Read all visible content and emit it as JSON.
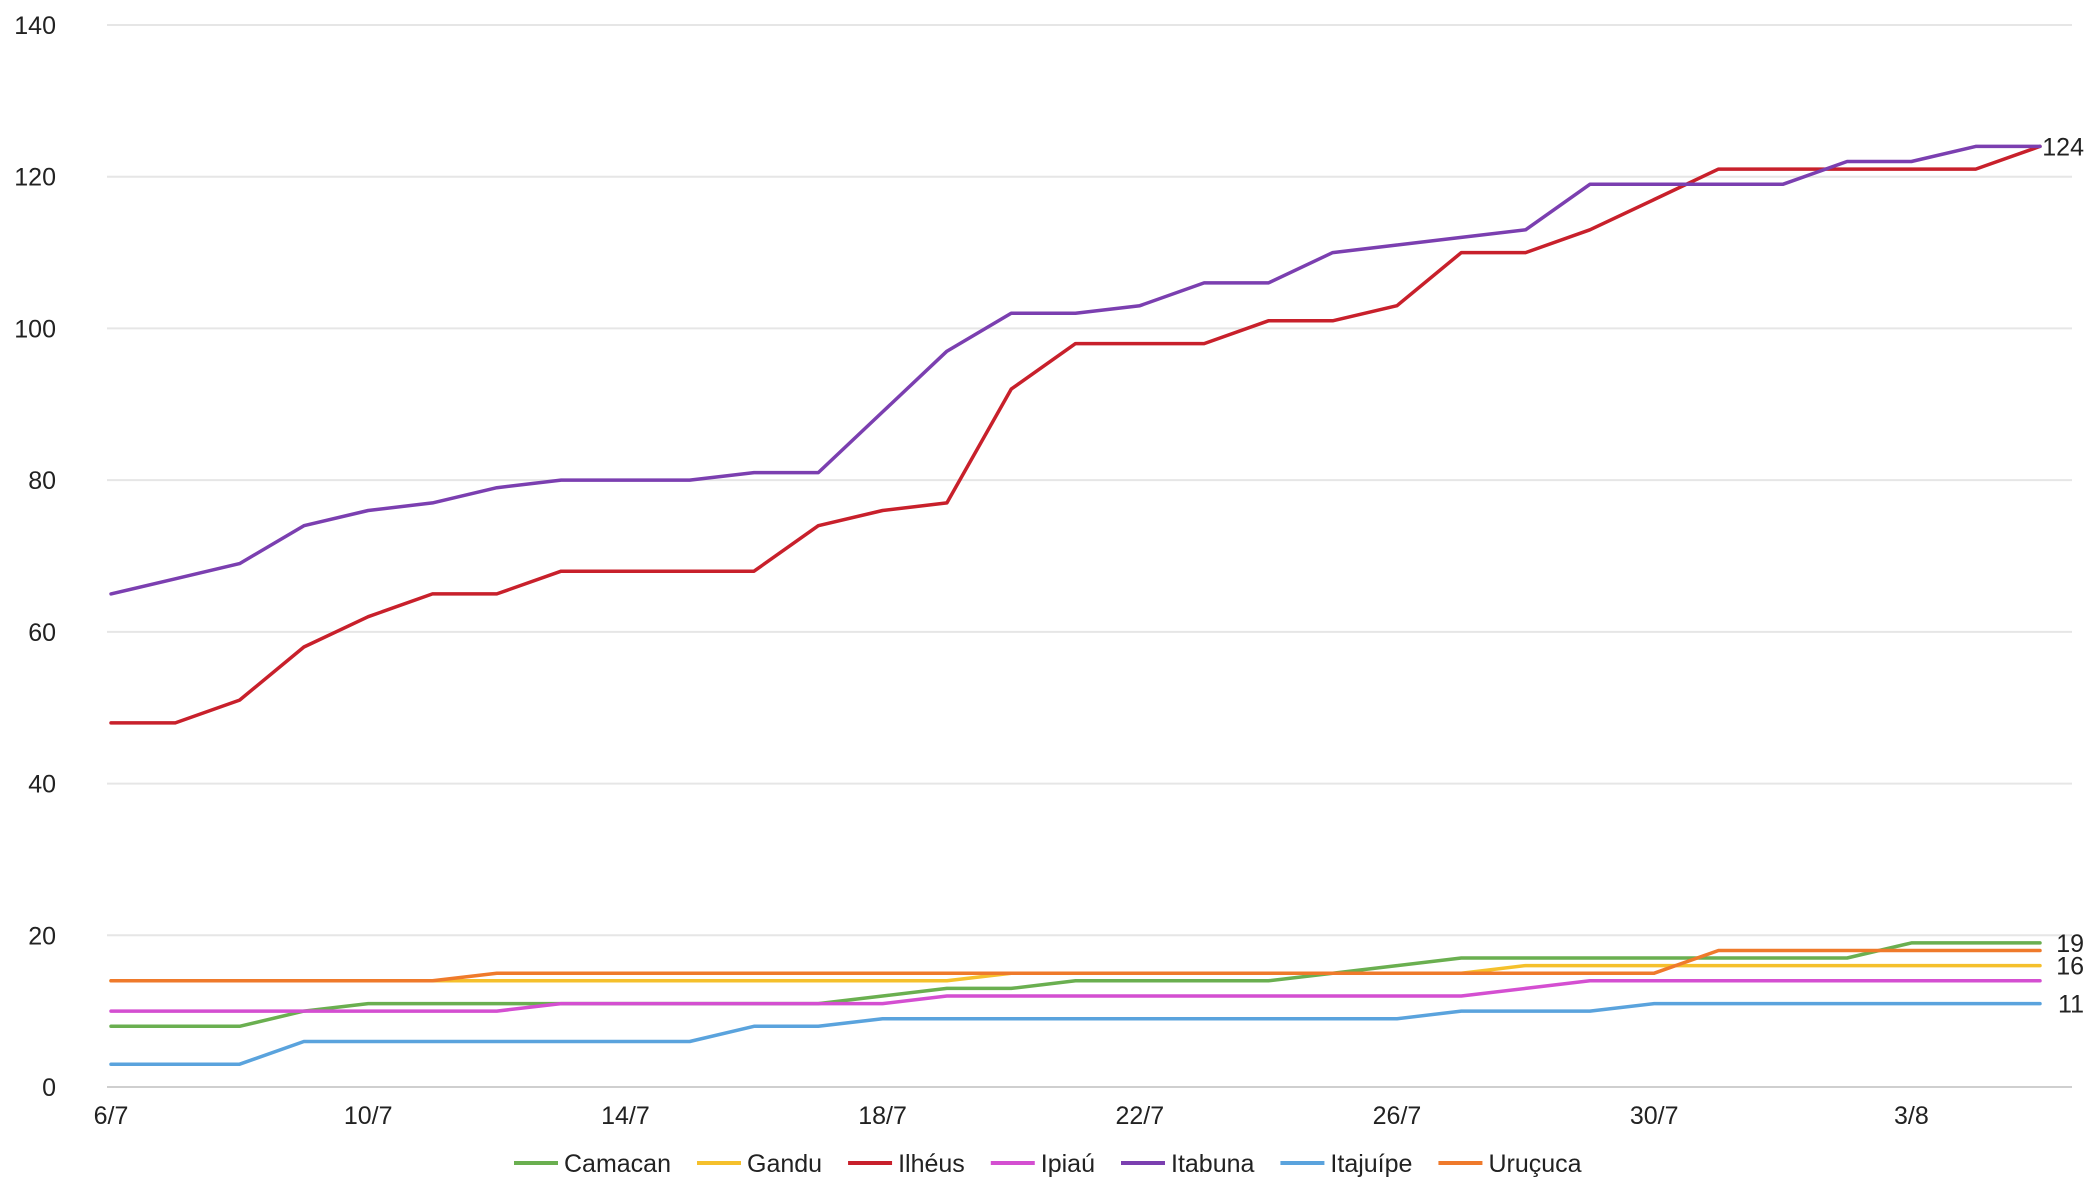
{
  "chart_data": {
    "type": "line",
    "title": "",
    "xlabel": "",
    "ylabel": "",
    "ylim": [
      0,
      140
    ],
    "yticks": [
      0,
      20,
      40,
      60,
      80,
      100,
      120,
      140
    ],
    "x": [
      "6/7",
      "7/7",
      "8/7",
      "9/7",
      "10/7",
      "11/7",
      "12/7",
      "13/7",
      "14/7",
      "15/7",
      "16/7",
      "17/7",
      "18/7",
      "19/7",
      "20/7",
      "21/7",
      "22/7",
      "23/7",
      "24/7",
      "25/7",
      "26/7",
      "27/7",
      "28/7",
      "29/7",
      "30/7",
      "31/7",
      "1/8",
      "2/8",
      "3/8",
      "4/8",
      "5/8"
    ],
    "x_tick_labels": [
      "6/7",
      "10/7",
      "14/7",
      "18/7",
      "22/7",
      "26/7",
      "30/7",
      "3/8"
    ],
    "grid": true,
    "legend_position": "bottom",
    "series": [
      {
        "name": "Camacan",
        "color": "#6aaf50",
        "values": [
          8,
          8,
          8,
          10,
          11,
          11,
          11,
          11,
          11,
          11,
          11,
          11,
          12,
          13,
          13,
          14,
          14,
          14,
          14,
          15,
          16,
          17,
          17,
          17,
          17,
          17,
          17,
          17,
          19,
          19,
          19
        ]
      },
      {
        "name": "Gandu",
        "color": "#f5c02c",
        "values": [
          14,
          14,
          14,
          14,
          14,
          14,
          14,
          14,
          14,
          14,
          14,
          14,
          14,
          14,
          15,
          15,
          15,
          15,
          15,
          15,
          15,
          15,
          16,
          16,
          16,
          16,
          16,
          16,
          16,
          16,
          16
        ]
      },
      {
        "name": "Ilhéus",
        "color": "#c8202b",
        "values": [
          48,
          48,
          51,
          58,
          62,
          65,
          65,
          68,
          68,
          68,
          68,
          74,
          76,
          77,
          92,
          98,
          98,
          98,
          101,
          101,
          103,
          110,
          110,
          113,
          117,
          121,
          121,
          121,
          121,
          121,
          124
        ]
      },
      {
        "name": "Ipiaú",
        "color": "#d44fd1",
        "values": [
          10,
          10,
          10,
          10,
          10,
          10,
          10,
          11,
          11,
          11,
          11,
          11,
          11,
          12,
          12,
          12,
          12,
          12,
          12,
          12,
          12,
          12,
          13,
          14,
          14,
          14,
          14,
          14,
          14,
          14,
          14
        ]
      },
      {
        "name": "Itabuna",
        "color": "#7b3fb0",
        "values": [
          65,
          67,
          69,
          74,
          76,
          77,
          79,
          80,
          80,
          80,
          81,
          81,
          89,
          97,
          102,
          102,
          103,
          106,
          106,
          110,
          111,
          112,
          113,
          119,
          119,
          119,
          119,
          122,
          122,
          124,
          124
        ]
      },
      {
        "name": "Itajuípe",
        "color": "#5aa3dd",
        "values": [
          3,
          3,
          3,
          6,
          6,
          6,
          6,
          6,
          6,
          6,
          8,
          8,
          9,
          9,
          9,
          9,
          9,
          9,
          9,
          9,
          9,
          10,
          10,
          10,
          11,
          11,
          11,
          11,
          11,
          11,
          11
        ]
      },
      {
        "name": "Uruçuca",
        "color": "#ef7a2b",
        "values": [
          14,
          14,
          14,
          14,
          14,
          14,
          15,
          15,
          15,
          15,
          15,
          15,
          15,
          15,
          15,
          15,
          15,
          15,
          15,
          15,
          15,
          15,
          15,
          15,
          15,
          18,
          18,
          18,
          18,
          18,
          18
        ]
      }
    ],
    "end_labels": [
      {
        "text": "124",
        "value": 124
      },
      {
        "text": "19",
        "value": 19
      },
      {
        "text": "16",
        "value": 16
      },
      {
        "text": "11",
        "value": 11
      }
    ]
  }
}
